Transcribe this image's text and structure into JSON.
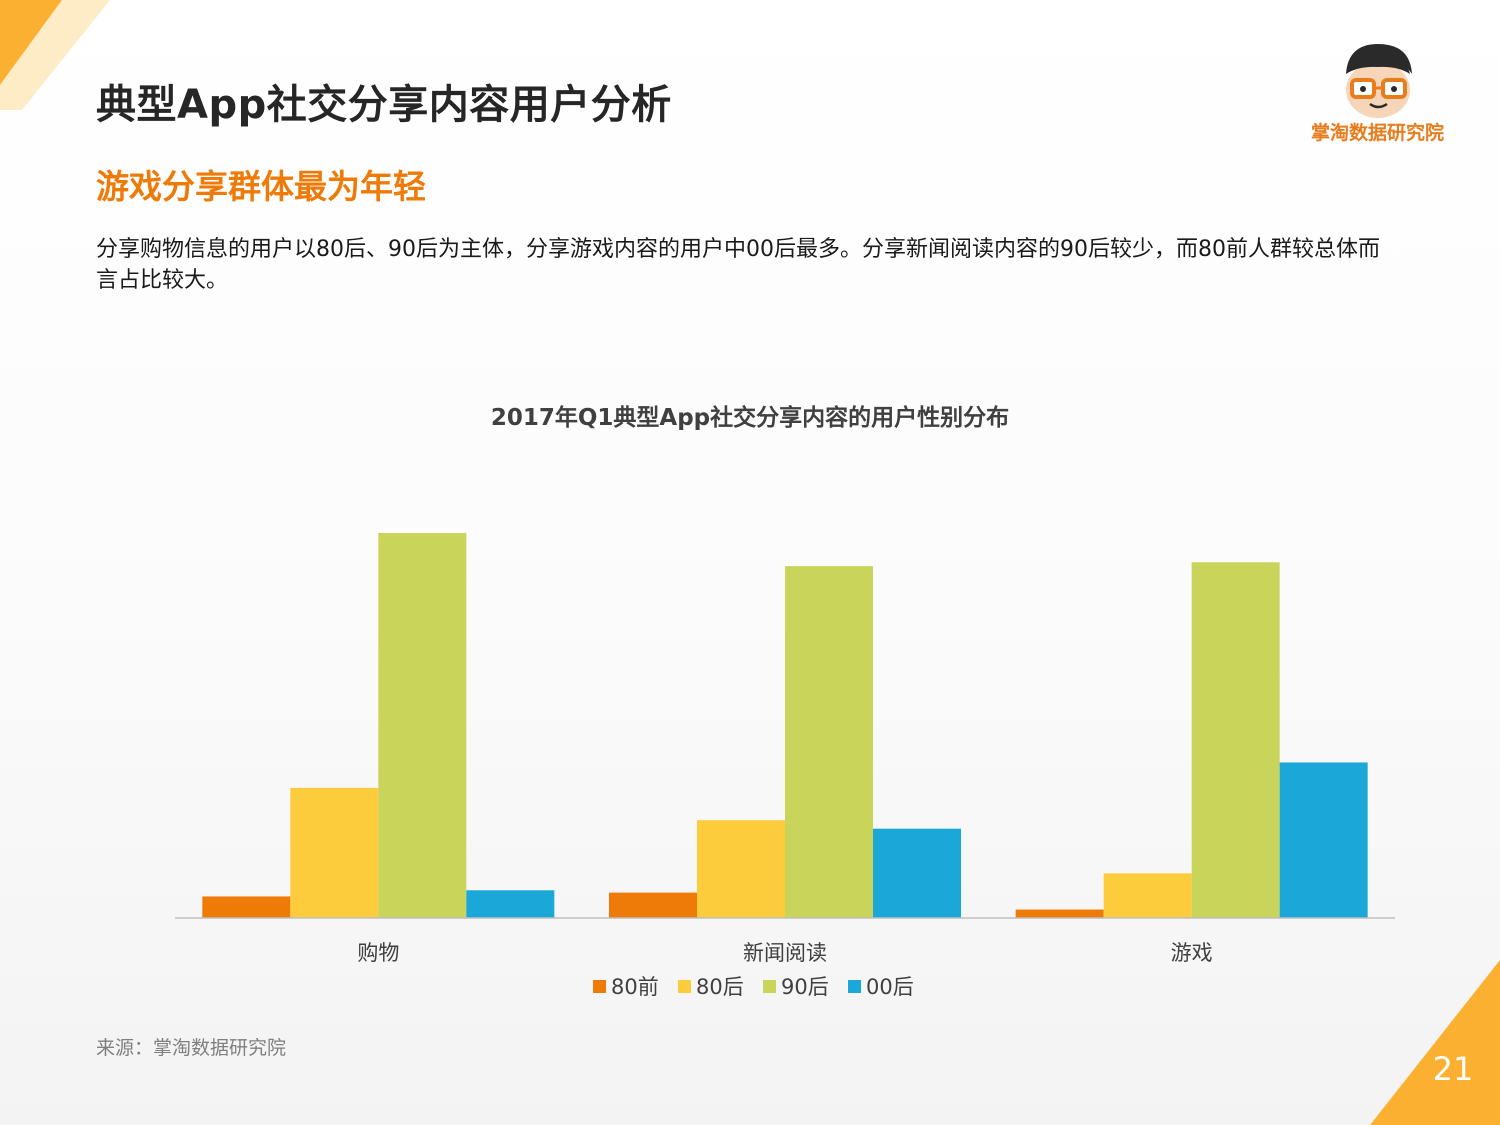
{
  "header": {
    "title": "典型App社交分享内容用户分析",
    "subtitle": "游戏分享群体最为年轻",
    "description": "分享购物信息的用户以80后、90后为主体，分享游戏内容的用户中00后最多。分享新闻阅读内容的90后较少，而80前人群较总体而言占比较大。"
  },
  "brand": {
    "name": "掌淘数据研究院",
    "logo_icon": "glasses-avatar-icon",
    "accent_color": "#ee7a08"
  },
  "chart_data": {
    "type": "bar",
    "title": "2017年Q1典型App社交分享内容的用户性别分布",
    "categories": [
      "购物",
      "新闻阅读",
      "游戏"
    ],
    "series": [
      {
        "name": "80前",
        "color": "#ee7a08",
        "values": [
          2.8,
          3.3,
          1.1
        ]
      },
      {
        "name": "80后",
        "color": "#fccc3c",
        "values": [
          16.9,
          12.7,
          5.8
        ]
      },
      {
        "name": "90后",
        "color": "#c8d45a",
        "values": [
          50,
          45.7,
          46.2
        ]
      },
      {
        "name": "00后",
        "color": "#1ba7d8",
        "values": [
          3.6,
          11.6,
          20.2
        ]
      }
    ],
    "ylim": [
      0,
      50
    ],
    "legend_position": "bottom",
    "grid": false,
    "axis_values_shown": false
  },
  "footer": {
    "source": "来源：掌淘数据研究院",
    "page_number": "21"
  }
}
